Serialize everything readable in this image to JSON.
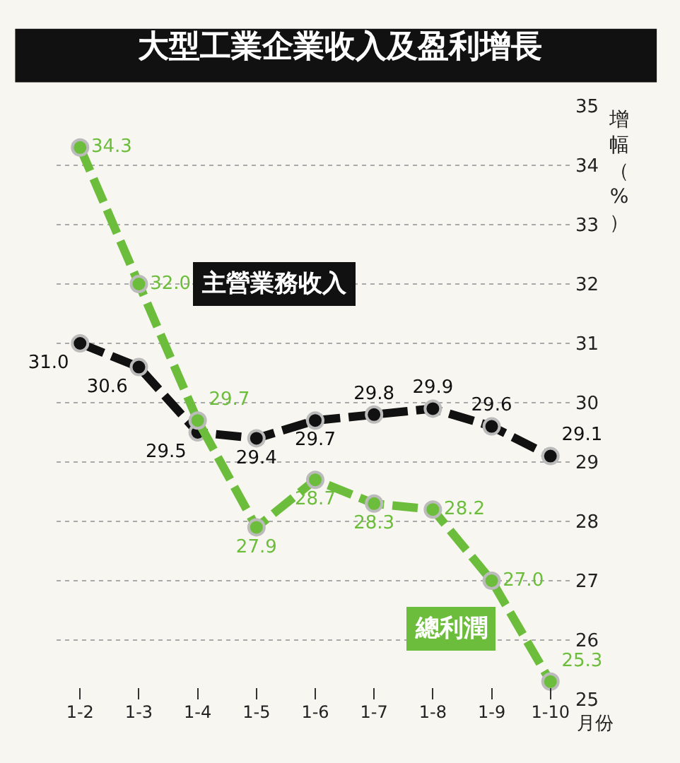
{
  "chart_data": {
    "type": "line",
    "title": "大型工業企業收入及盈利增長",
    "ylabel": "增幅（%）",
    "xlabel": "月份",
    "categories": [
      "1-2",
      "1-3",
      "1-4",
      "1-5",
      "1-6",
      "1-7",
      "1-8",
      "1-9",
      "1-10"
    ],
    "series": [
      {
        "name": "主營業務收入",
        "color": "#111111",
        "values": [
          31.0,
          30.6,
          29.5,
          29.4,
          29.7,
          29.8,
          29.9,
          29.6,
          29.1
        ],
        "value_labels": [
          "31.0",
          "30.6",
          "29.5",
          "29.4",
          "29.7",
          "29.8",
          "29.9",
          "29.6",
          "29.1"
        ]
      },
      {
        "name": "總利潤",
        "color": "#6cbd3c",
        "values": [
          34.3,
          32.0,
          29.7,
          27.9,
          28.7,
          28.3,
          28.2,
          27.0,
          25.3
        ],
        "value_labels": [
          "34.3",
          "32.0",
          "29.7",
          "27.9",
          "28.7",
          "28.3",
          "28.2",
          "27.0",
          "25.3"
        ]
      }
    ],
    "ylim": [
      25,
      35
    ],
    "yticks": [
      25,
      26,
      27,
      28,
      29,
      30,
      31,
      32,
      33,
      34,
      35
    ],
    "grid": "y",
    "legend": false,
    "marker": "circle",
    "line_style": "dashed"
  }
}
